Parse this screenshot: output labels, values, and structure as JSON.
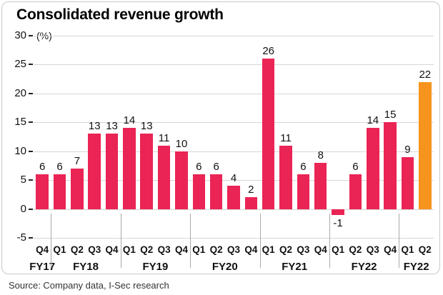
{
  "title": "Consolidated revenue growth",
  "source": "Source: Company data, I-Sec research",
  "chart_data": {
    "type": "bar",
    "title": "Consolidated revenue growth",
    "unit_label": "(%)",
    "ylim": [
      -5,
      30
    ],
    "yticks": [
      30,
      25,
      20,
      15,
      10,
      5,
      0,
      -5
    ],
    "grid": true,
    "groups": [
      {
        "fy": "FY17",
        "quarters": [
          "Q4"
        ],
        "values": [
          6
        ]
      },
      {
        "fy": "FY18",
        "quarters": [
          "Q1",
          "Q2",
          "Q3",
          "Q4"
        ],
        "values": [
          6,
          7,
          13,
          13
        ]
      },
      {
        "fy": "FY19",
        "quarters": [
          "Q1",
          "Q2",
          "Q3",
          "Q4"
        ],
        "values": [
          14,
          13,
          11,
          10
        ]
      },
      {
        "fy": "FY20",
        "quarters": [
          "Q1",
          "Q2",
          "Q3",
          "Q4"
        ],
        "values": [
          6,
          6,
          4,
          2
        ]
      },
      {
        "fy": "FY21",
        "quarters": [
          "Q1",
          "Q2",
          "Q3",
          "Q4"
        ],
        "values": [
          26,
          11,
          6,
          8
        ]
      },
      {
        "fy": "FY22",
        "quarters": [
          "Q1",
          "Q2",
          "Q3",
          "Q4"
        ],
        "values": [
          -1,
          6,
          14,
          15
        ]
      },
      {
        "fy": "FY22",
        "quarters": [
          "Q1",
          "Q2"
        ],
        "values": [
          9,
          22
        ]
      }
    ],
    "highlight": {
      "group": 6,
      "index": 1
    },
    "colors": {
      "bar": "#ea2454",
      "highlight_bar": "#f7941d",
      "grid": "#d6d6d6",
      "separator": "#a9a9a9",
      "tick": "#222222"
    },
    "legend": null
  }
}
